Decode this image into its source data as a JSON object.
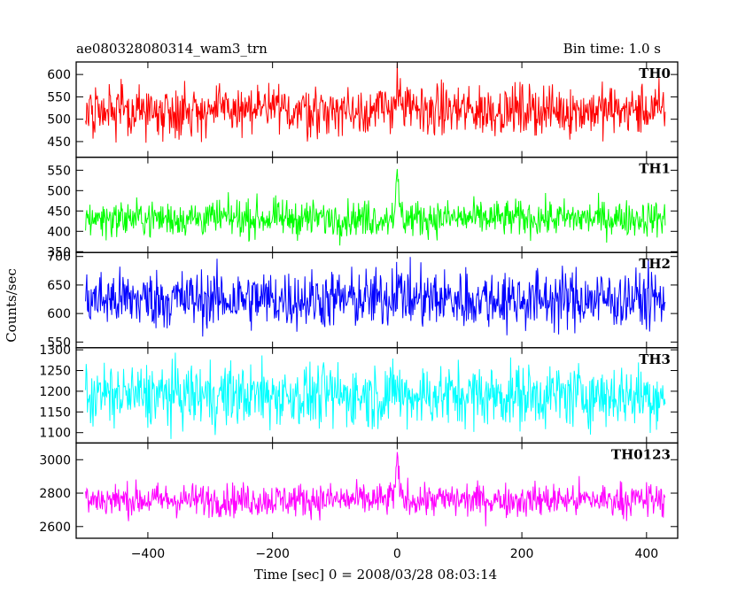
{
  "header": {
    "title": "ae080328080314_wam3_trn",
    "bin_time": "Bin time: 1.0 s"
  },
  "chart_data": {
    "type": "line",
    "xlabel": "Time [sec] 0 = 2008/03/28 08:03:14",
    "ylabel": "Counts/sec",
    "xlim": [
      -515,
      450
    ],
    "x_range": [
      -500,
      430
    ],
    "x_ticks": [
      -400,
      -200,
      0,
      200,
      400
    ],
    "x_tick_labels": [
      "−400",
      "−200",
      "0",
      "200",
      "400"
    ],
    "series": [
      {
        "name": "TH0",
        "color": "#ff0000",
        "ylim": [
          415,
          628
        ],
        "mean": 520,
        "noise": 28,
        "burst": 95,
        "y_ticks": [
          450,
          500,
          550,
          600
        ],
        "y_tick_labels": [
          "450",
          "500",
          "550",
          "600"
        ]
      },
      {
        "name": "TH1",
        "color": "#00ff00",
        "ylim": [
          348,
          582
        ],
        "mean": 432,
        "noise": 22,
        "burst": 140,
        "y_ticks": [
          350,
          400,
          450,
          500,
          550
        ],
        "y_tick_labels": [
          "350",
          "400",
          "450",
          "500",
          "550"
        ]
      },
      {
        "name": "TH2",
        "color": "#0000ff",
        "ylim": [
          540,
          707
        ],
        "mean": 625,
        "noise": 26,
        "burst": 60,
        "y_ticks": [
          550,
          600,
          650,
          700
        ],
        "y_tick_labels": [
          "550",
          "600",
          "650",
          "700"
        ]
      },
      {
        "name": "TH3",
        "color": "#00ffff",
        "ylim": [
          1075,
          1305
        ],
        "mean": 1190,
        "noise": 38,
        "burst": 40,
        "y_ticks": [
          1100,
          1150,
          1200,
          1250,
          1300
        ],
        "y_tick_labels": [
          "1100",
          "1150",
          "1200",
          "1250",
          "1300"
        ]
      },
      {
        "name": "TH0123",
        "color": "#ff00ff",
        "ylim": [
          2530,
          3100
        ],
        "mean": 2760,
        "noise": 50,
        "burst": 320,
        "y_ticks": [
          2600,
          2800,
          3000
        ],
        "y_tick_labels": [
          "2600",
          "2800",
          "3000"
        ]
      }
    ]
  }
}
